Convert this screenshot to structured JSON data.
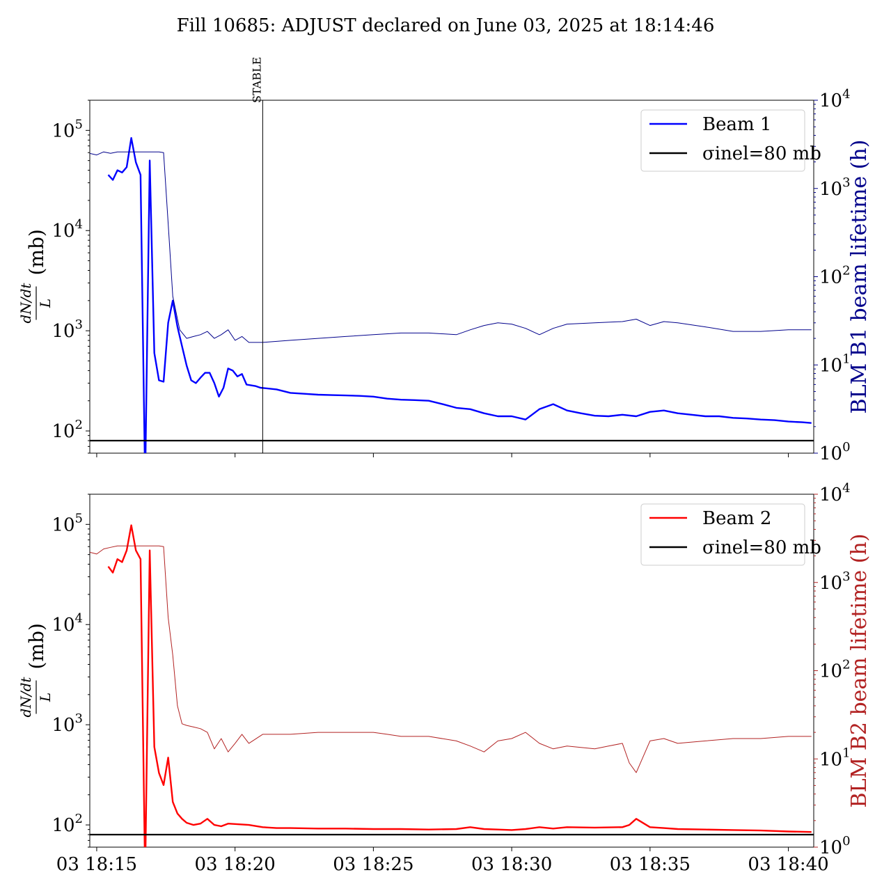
{
  "figure": {
    "title": "Fill 10685: ADJUST declared on June 03, 2025 at 18:14:46"
  },
  "colors": {
    "beam1": "#0000ff",
    "beam1_lifetime": "#00008b",
    "beam2": "#ff0000",
    "beam2_lifetime": "#b22222",
    "reference": "#000000"
  },
  "chart_data": [
    {
      "type": "line",
      "title": "",
      "xlabel": "",
      "ylabel": "dN/dt / L (mb)",
      "ylabel_right": "BLM B1 beam lifetime (h)",
      "yscale": "log",
      "ylim": [
        60,
        200000
      ],
      "yscale_right": "log",
      "ylim_right": [
        1,
        10000
      ],
      "xlim": [
        "03 18:14:45",
        "03 18:40:55"
      ],
      "x_tick_labels": [
        "03 18:15",
        "03 18:20",
        "03 18:25",
        "03 18:30",
        "03 18:35",
        "03 18:40"
      ],
      "y_tick_labels": [
        "10^2",
        "10^3",
        "10^4",
        "10^5"
      ],
      "y_right_tick_labels": [
        "10^0",
        "10^1",
        "10^2",
        "10^3",
        "10^4"
      ],
      "legend": {
        "position": "upper right",
        "entries": [
          "Beam 1",
          "σinel=80 mb"
        ]
      },
      "reference_line": {
        "label": "σinel=80 mb",
        "value": 80
      },
      "vline": {
        "label": "STABLE",
        "x": "03 18:21:00"
      },
      "series": [
        {
          "name": "Beam 1",
          "axis": "left",
          "x": [
            "18:15:25",
            "18:15:35",
            "18:15:45",
            "18:15:55",
            "18:16:05",
            "18:16:15",
            "18:16:25",
            "18:16:35",
            "18:16:45",
            "18:16:55",
            "18:17:05",
            "18:17:15",
            "18:17:25",
            "18:17:35",
            "18:17:45",
            "18:17:55",
            "18:18:05",
            "18:18:15",
            "18:18:25",
            "18:18:35",
            "18:18:45",
            "18:18:55",
            "18:19:05",
            "18:19:15",
            "18:19:25",
            "18:19:35",
            "18:19:45",
            "18:19:55",
            "18:20:05",
            "18:20:15",
            "18:20:25",
            "18:20:35",
            "18:20:45",
            "18:20:55",
            "18:21:30",
            "18:22:00",
            "18:22:30",
            "18:23:00",
            "18:23:30",
            "18:24:00",
            "18:24:30",
            "18:25:00",
            "18:25:30",
            "18:26:00",
            "18:26:30",
            "18:27:00",
            "18:27:30",
            "18:28:00",
            "18:28:30",
            "18:29:00",
            "18:29:30",
            "18:30:00",
            "18:30:30",
            "18:31:00",
            "18:31:30",
            "18:32:00",
            "18:32:30",
            "18:33:00",
            "18:33:30",
            "18:34:00",
            "18:34:30",
            "18:35:00",
            "18:35:30",
            "18:36:00",
            "18:36:30",
            "18:37:00",
            "18:37:30",
            "18:38:00",
            "18:38:30",
            "18:39:00",
            "18:39:30",
            "18:40:00",
            "18:40:30",
            "18:40:50"
          ],
          "values": [
            36000,
            32000,
            40000,
            38000,
            43000,
            84000,
            48000,
            36000,
            30,
            50000,
            600,
            320,
            310,
            1200,
            2000,
            1100,
            700,
            450,
            320,
            300,
            340,
            380,
            380,
            300,
            220,
            270,
            420,
            400,
            350,
            370,
            290,
            285,
            280,
            270,
            260,
            240,
            235,
            230,
            228,
            226,
            224,
            220,
            210,
            205,
            203,
            200,
            185,
            170,
            165,
            150,
            140,
            140,
            130,
            165,
            185,
            160,
            150,
            142,
            140,
            145,
            140,
            155,
            160,
            150,
            145,
            140,
            140,
            135,
            133,
            130,
            128,
            124,
            122,
            120
          ]
        },
        {
          "name": "BLM B1 beam lifetime",
          "axis": "right",
          "x": [
            "18:14:45",
            "18:15:00",
            "18:15:15",
            "18:15:30",
            "18:15:45",
            "18:16:00",
            "18:16:15",
            "18:16:30",
            "18:16:45",
            "18:17:00",
            "18:17:15",
            "18:17:25",
            "18:17:35",
            "18:17:45",
            "18:18:00",
            "18:18:15",
            "18:18:30",
            "18:18:45",
            "18:19:00",
            "18:19:15",
            "18:19:30",
            "18:19:45",
            "18:20:00",
            "18:20:15",
            "18:20:30",
            "18:21:00",
            "18:22:00",
            "18:23:00",
            "18:24:00",
            "18:25:00",
            "18:26:00",
            "18:27:00",
            "18:28:00",
            "18:28:30",
            "18:29:00",
            "18:29:30",
            "18:30:00",
            "18:30:30",
            "18:31:00",
            "18:31:30",
            "18:32:00",
            "18:33:00",
            "18:34:00",
            "18:34:30",
            "18:35:00",
            "18:35:30",
            "18:36:00",
            "18:37:00",
            "18:38:00",
            "18:39:00",
            "18:40:00",
            "18:40:50"
          ],
          "values": [
            2500,
            2400,
            2600,
            2500,
            2600,
            2600,
            2600,
            2600,
            2600,
            2600,
            2600,
            2550,
            400,
            60,
            25,
            20,
            21,
            22,
            24,
            20,
            22,
            25,
            19,
            21,
            18,
            18,
            19,
            20,
            21,
            22,
            23,
            23,
            22,
            25,
            28,
            30,
            29,
            26,
            22,
            26,
            29,
            30,
            31,
            33,
            28,
            31,
            30,
            27,
            24,
            24,
            25,
            25
          ]
        },
        {
          "name": "σinel=80 mb",
          "axis": "left",
          "x": [
            "18:14:45",
            "18:40:55"
          ],
          "values": [
            80,
            80
          ]
        }
      ]
    },
    {
      "type": "line",
      "title": "",
      "xlabel": "",
      "ylabel": "dN/dt / L (mb)",
      "ylabel_right": "BLM B2 beam lifetime (h)",
      "yscale": "log",
      "ylim": [
        60,
        200000
      ],
      "yscale_right": "log",
      "ylim_right": [
        1,
        10000
      ],
      "xlim": [
        "03 18:14:45",
        "03 18:40:55"
      ],
      "x_tick_labels": [
        "03 18:15",
        "03 18:20",
        "03 18:25",
        "03 18:30",
        "03 18:35",
        "03 18:40"
      ],
      "y_tick_labels": [
        "10^2",
        "10^3",
        "10^4",
        "10^5"
      ],
      "y_right_tick_labels": [
        "10^0",
        "10^1",
        "10^2",
        "10^3",
        "10^4"
      ],
      "legend": {
        "position": "upper right",
        "entries": [
          "Beam 2",
          "σinel=80 mb"
        ]
      },
      "reference_line": {
        "label": "σinel=80 mb",
        "value": 80
      },
      "series": [
        {
          "name": "Beam 2",
          "axis": "left",
          "x": [
            "18:15:25",
            "18:15:35",
            "18:15:45",
            "18:15:55",
            "18:16:05",
            "18:16:15",
            "18:16:25",
            "18:16:35",
            "18:16:45",
            "18:16:55",
            "18:17:05",
            "18:17:15",
            "18:17:25",
            "18:17:35",
            "18:17:45",
            "18:17:55",
            "18:18:05",
            "18:18:15",
            "18:18:30",
            "18:18:45",
            "18:19:00",
            "18:19:15",
            "18:19:30",
            "18:19:45",
            "18:20:00",
            "18:20:30",
            "18:21:00",
            "18:21:30",
            "18:22:00",
            "18:23:00",
            "18:24:00",
            "18:25:00",
            "18:26:00",
            "18:27:00",
            "18:28:00",
            "18:28:30",
            "18:29:00",
            "18:29:30",
            "18:30:00",
            "18:30:30",
            "18:31:00",
            "18:31:30",
            "18:32:00",
            "18:33:00",
            "18:34:00",
            "18:34:15",
            "18:34:30",
            "18:35:00",
            "18:35:30",
            "18:36:00",
            "18:37:00",
            "18:38:00",
            "18:39:00",
            "18:40:00",
            "18:40:50"
          ],
          "values": [
            38000,
            33000,
            45000,
            42000,
            55000,
            98000,
            55000,
            45000,
            30,
            55000,
            600,
            330,
            250,
            470,
            170,
            130,
            115,
            105,
            100,
            103,
            115,
            100,
            97,
            103,
            102,
            100,
            95,
            93,
            93,
            92,
            92,
            91,
            91,
            90,
            91,
            95,
            91,
            90,
            89,
            91,
            95,
            92,
            95,
            94,
            95,
            100,
            115,
            95,
            93,
            91,
            90,
            89,
            88,
            86,
            85
          ]
        },
        {
          "name": "BLM B2 beam lifetime",
          "axis": "right",
          "x": [
            "18:14:45",
            "18:15:00",
            "18:15:15",
            "18:15:30",
            "18:15:45",
            "18:16:00",
            "18:16:15",
            "18:16:30",
            "18:16:45",
            "18:17:00",
            "18:17:15",
            "18:17:25",
            "18:17:35",
            "18:17:45",
            "18:17:55",
            "18:18:05",
            "18:18:15",
            "18:18:30",
            "18:18:45",
            "18:19:00",
            "18:19:15",
            "18:19:30",
            "18:19:45",
            "18:20:00",
            "18:20:15",
            "18:20:30",
            "18:21:00",
            "18:22:00",
            "18:23:00",
            "18:24:00",
            "18:25:00",
            "18:25:30",
            "18:26:00",
            "18:27:00",
            "18:28:00",
            "18:28:30",
            "18:29:00",
            "18:29:30",
            "18:30:00",
            "18:30:30",
            "18:31:00",
            "18:31:30",
            "18:32:00",
            "18:33:00",
            "18:33:30",
            "18:34:00",
            "18:34:15",
            "18:34:30",
            "18:35:00",
            "18:35:30",
            "18:36:00",
            "18:37:00",
            "18:38:00",
            "18:39:00",
            "18:40:00",
            "18:40:50"
          ],
          "values": [
            2200,
            2100,
            2400,
            2500,
            2600,
            2600,
            2600,
            2600,
            2600,
            2600,
            2600,
            2550,
            400,
            150,
            40,
            25,
            24,
            23,
            22,
            20,
            13,
            17,
            12,
            15,
            19,
            15,
            19,
            19,
            20,
            20,
            20,
            19,
            18,
            18,
            16,
            14,
            12,
            16,
            17,
            20,
            15,
            13,
            14,
            13,
            14,
            15,
            9,
            7,
            16,
            17,
            15,
            16,
            17,
            17,
            18,
            18
          ]
        },
        {
          "name": "σinel=80 mb",
          "axis": "left",
          "x": [
            "18:14:45",
            "18:40:55"
          ],
          "values": [
            80,
            80
          ]
        }
      ]
    }
  ]
}
